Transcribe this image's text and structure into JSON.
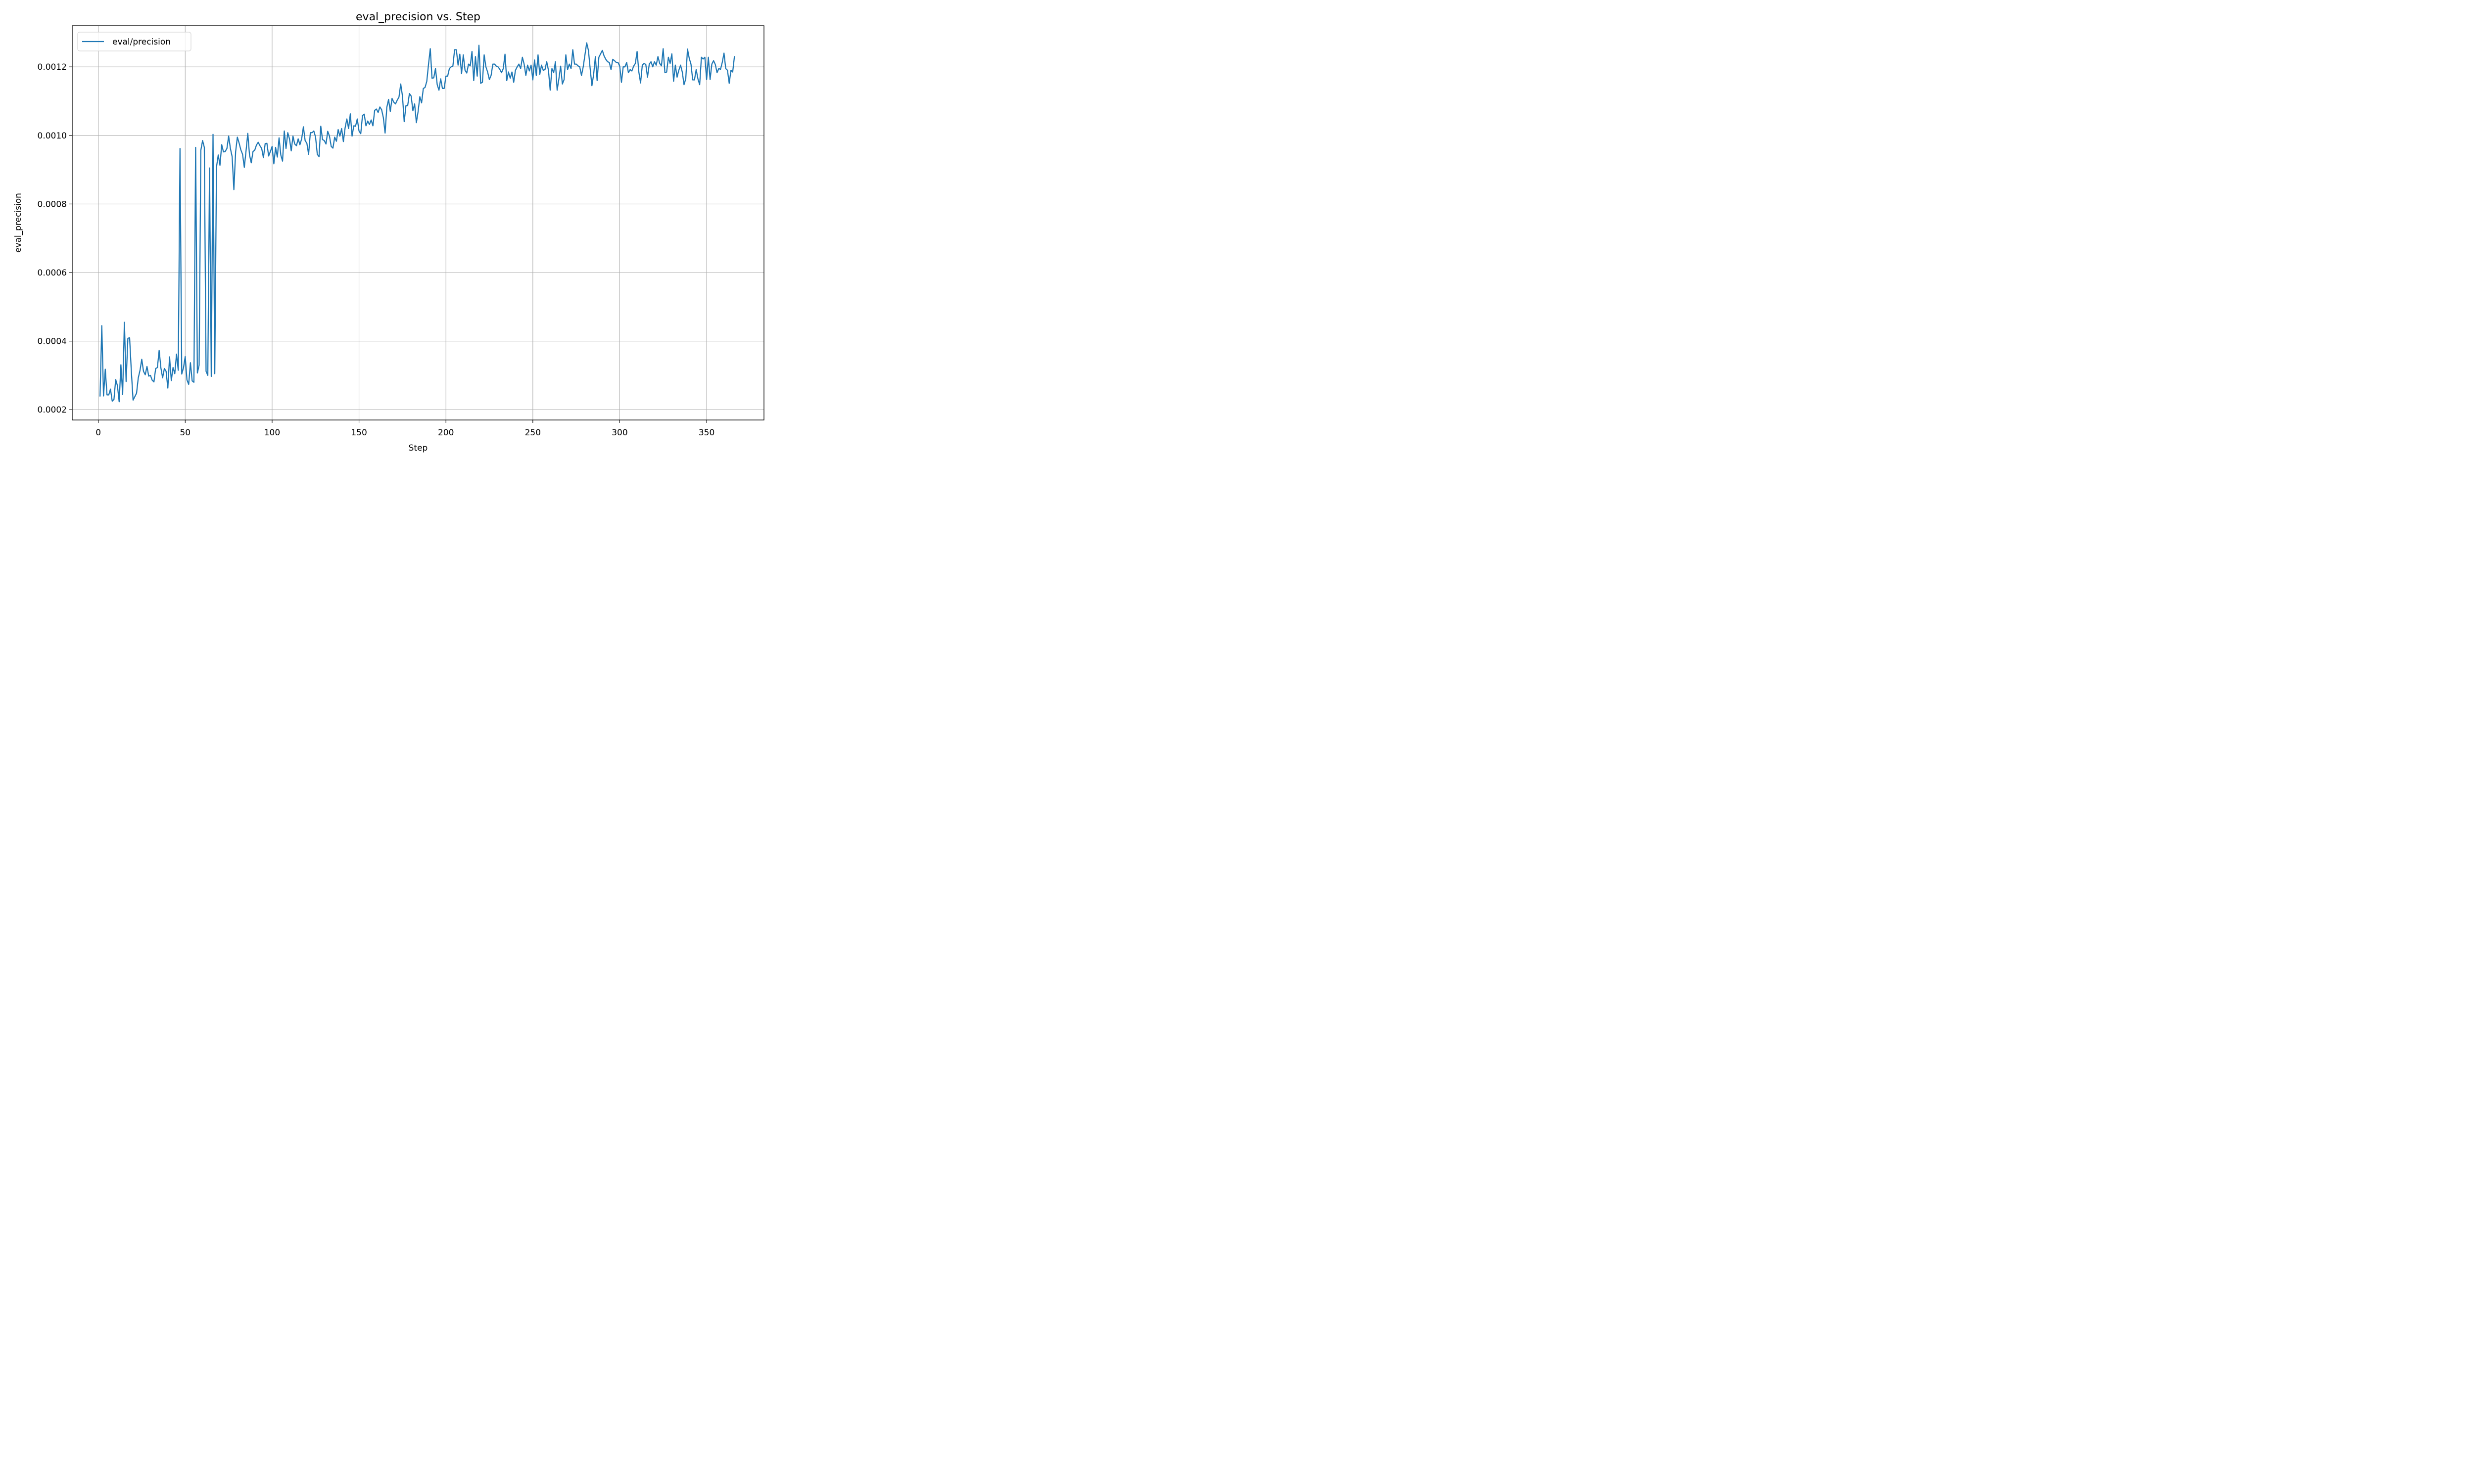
{
  "chart_data": {
    "type": "line",
    "title": "eval_precision vs. Step",
    "xlabel": "Step",
    "ylabel": "eval_precision",
    "xlim": [
      -15,
      383
    ],
    "ylim": [
      0.00017,
      0.00132
    ],
    "xticks": [
      0,
      50,
      100,
      150,
      200,
      250,
      300,
      350
    ],
    "yticks": [
      0.0002,
      0.0004,
      0.0006,
      0.0008,
      0.001,
      0.0012
    ],
    "ytick_labels": [
      "0.0002",
      "0.0004",
      "0.0006",
      "0.0008",
      "0.0010",
      "0.0012"
    ],
    "grid": true,
    "legend": "upper left",
    "series": [
      {
        "name": "eval/precision",
        "color": "#1f77b4",
        "x": [
          1,
          2,
          3,
          4,
          5,
          6,
          7,
          8,
          9,
          10,
          11,
          12,
          13,
          14,
          15,
          16,
          17,
          18,
          19,
          20,
          21,
          22,
          23,
          24,
          25,
          26,
          27,
          28,
          29,
          30,
          31,
          32,
          33,
          34,
          35,
          36,
          37,
          38,
          39,
          40,
          41,
          42,
          43,
          44,
          45,
          46,
          47,
          48,
          49,
          50,
          51,
          52,
          53,
          54,
          55,
          56,
          57,
          58,
          59,
          60,
          61,
          62,
          63,
          64,
          65,
          66,
          67,
          68,
          69,
          70,
          71,
          72,
          73,
          74,
          75,
          76,
          77,
          78,
          79,
          80,
          81,
          82,
          83,
          84,
          85,
          86,
          87,
          88,
          89,
          90,
          91,
          92,
          93,
          94,
          95,
          96,
          97,
          98,
          99,
          100,
          101,
          102,
          103,
          104,
          105,
          106,
          107,
          108,
          109,
          110,
          111,
          112,
          113,
          114,
          115,
          116,
          117,
          118,
          119,
          120,
          121,
          122,
          123,
          124,
          125,
          126,
          127,
          128,
          129,
          130,
          131,
          132,
          133,
          134,
          135,
          136,
          137,
          138,
          139,
          140,
          141,
          142,
          143,
          144,
          145,
          146,
          147,
          148,
          149,
          150,
          151,
          152,
          153,
          154,
          155,
          156,
          157,
          158,
          159,
          160,
          161,
          162,
          163,
          164,
          165,
          166,
          167,
          168,
          169,
          170,
          171,
          172,
          173,
          174,
          175,
          176,
          177,
          178,
          179,
          180,
          181,
          182,
          183,
          184,
          185,
          186,
          187,
          188,
          189,
          190,
          191,
          192,
          193,
          194,
          195,
          196,
          197,
          198,
          199,
          200,
          201,
          202,
          203,
          204,
          205,
          206,
          207,
          208,
          209,
          210,
          211,
          212,
          213,
          214,
          215,
          216,
          217,
          218,
          219,
          220,
          221,
          222,
          223,
          224,
          225,
          226,
          227,
          228,
          229,
          230,
          231,
          232,
          233,
          234,
          235,
          236,
          237,
          238,
          239,
          240,
          241,
          242,
          243,
          244,
          245,
          246,
          247,
          248,
          249,
          250,
          251,
          252,
          253,
          254,
          255,
          256,
          257,
          258,
          259,
          260,
          261,
          262,
          263,
          264,
          265,
          266,
          267,
          268,
          269,
          270,
          271,
          272,
          273,
          274,
          275,
          276,
          277,
          278,
          279,
          280,
          281,
          282,
          283,
          284,
          285,
          286,
          287,
          288,
          289,
          290,
          291,
          292,
          293,
          294,
          295,
          296,
          297,
          298,
          299,
          300,
          301,
          302,
          303,
          304,
          305,
          306,
          307,
          308,
          309,
          310,
          311,
          312,
          313,
          314,
          315,
          316,
          317,
          318,
          319,
          320,
          321,
          322,
          323,
          324,
          325,
          326,
          327,
          328,
          329,
          330,
          331,
          332,
          333,
          334,
          335,
          336,
          337,
          338,
          339,
          340,
          341,
          342,
          343,
          344,
          345,
          346,
          347,
          348,
          349,
          350,
          351,
          352,
          353,
          354,
          355,
          356,
          357,
          358,
          359,
          360,
          361,
          362,
          363,
          364,
          365,
          366
        ],
        "y": [
          0.00024,
          0.000445,
          0.00024,
          0.000318,
          0.000243,
          0.000243,
          0.00026,
          0.000225,
          0.00023,
          0.000288,
          0.00027,
          0.000223,
          0.000331,
          0.000244,
          0.000455,
          0.000282,
          0.000408,
          0.00041,
          0.000312,
          0.000228,
          0.000238,
          0.000248,
          0.000293,
          0.000315,
          0.000347,
          0.000312,
          0.000302,
          0.000326,
          0.000298,
          0.0003,
          0.000286,
          0.000281,
          0.00032,
          0.000323,
          0.000373,
          0.000322,
          0.000293,
          0.00032,
          0.000312,
          0.000263,
          0.000354,
          0.000285,
          0.000323,
          0.000305,
          0.000362,
          0.000315,
          0.000962,
          0.000304,
          0.000322,
          0.000355,
          0.000287,
          0.000274,
          0.000337,
          0.000284,
          0.00028,
          0.000965,
          0.000307,
          0.00033,
          0.000957,
          0.000985,
          0.000965,
          0.000312,
          0.0003,
          0.000905,
          0.000297,
          0.001003,
          0.000305,
          0.000908,
          0.000943,
          0.000913,
          0.000973,
          0.000952,
          0.000953,
          0.000962,
          0.000998,
          0.000962,
          0.000938,
          0.000842,
          0.000952,
          0.000995,
          0.000978,
          0.000958,
          0.000945,
          0.000907,
          0.000955,
          0.001006,
          0.000943,
          0.00092,
          0.000953,
          0.000957,
          0.000972,
          0.00098,
          0.00097,
          0.000962,
          0.000935,
          0.000976,
          0.000977,
          0.00094,
          0.000953,
          0.000968,
          0.000917,
          0.000965,
          0.000937,
          0.000993,
          0.000943,
          0.000925,
          0.001013,
          0.000962,
          0.001008,
          0.00099,
          0.000955,
          0.000998,
          0.000975,
          0.00097,
          0.00099,
          0.000973,
          0.00099,
          0.001025,
          0.000985,
          0.000977,
          0.000945,
          0.001008,
          0.001008,
          0.001013,
          0.000995,
          0.000945,
          0.000938,
          0.001027,
          0.000988,
          0.000985,
          0.000975,
          0.001012,
          0.000998,
          0.000968,
          0.000963,
          0.000995,
          0.000983,
          0.001017,
          0.000998,
          0.00102,
          0.000982,
          0.001022,
          0.001048,
          0.00102,
          0.001063,
          0.000998,
          0.001028,
          0.001027,
          0.001048,
          0.001013,
          0.001005,
          0.001058,
          0.001062,
          0.001028,
          0.001042,
          0.001032,
          0.001045,
          0.001028,
          0.001073,
          0.001077,
          0.001067,
          0.001083,
          0.001075,
          0.001052,
          0.001007,
          0.001082,
          0.001105,
          0.00107,
          0.001108,
          0.001097,
          0.001092,
          0.001103,
          0.001112,
          0.00115,
          0.001115,
          0.00104,
          0.001087,
          0.001087,
          0.001122,
          0.001115,
          0.001072,
          0.001092,
          0.001037,
          0.00107,
          0.001113,
          0.001095,
          0.001137,
          0.00114,
          0.001158,
          0.001208,
          0.001253,
          0.001167,
          0.001168,
          0.001195,
          0.001148,
          0.001132,
          0.001165,
          0.001137,
          0.001137,
          0.001173,
          0.001173,
          0.001195,
          0.0012,
          0.001202,
          0.00125,
          0.00125,
          0.001205,
          0.001237,
          0.00118,
          0.001235,
          0.00119,
          0.001182,
          0.001208,
          0.001203,
          0.001245,
          0.00116,
          0.00123,
          0.001173,
          0.001263,
          0.001152,
          0.001155,
          0.001235,
          0.0012,
          0.001185,
          0.001163,
          0.001175,
          0.001208,
          0.001208,
          0.001202,
          0.0012,
          0.001193,
          0.001183,
          0.001195,
          0.001237,
          0.00116,
          0.001185,
          0.001167,
          0.001185,
          0.001155,
          0.00119,
          0.0012,
          0.001208,
          0.001195,
          0.001228,
          0.001208,
          0.001175,
          0.001205,
          0.001188,
          0.001205,
          0.001162,
          0.00122,
          0.001175,
          0.001235,
          0.001178,
          0.001205,
          0.00119,
          0.001192,
          0.001215,
          0.00119,
          0.001132,
          0.001195,
          0.001183,
          0.001215,
          0.001132,
          0.001165,
          0.001202,
          0.00115,
          0.001163,
          0.001235,
          0.001192,
          0.001208,
          0.001195,
          0.00125,
          0.001208,
          0.001208,
          0.001203,
          0.0012,
          0.001175,
          0.0012,
          0.001235,
          0.00127,
          0.001248,
          0.001195,
          0.001145,
          0.001178,
          0.00123,
          0.00116,
          0.001228,
          0.001238,
          0.001248,
          0.001232,
          0.001222,
          0.001215,
          0.001213,
          0.001192,
          0.001222,
          0.001218,
          0.001213,
          0.001213,
          0.001202,
          0.001155,
          0.0012,
          0.0012,
          0.001213,
          0.001183,
          0.001192,
          0.001188,
          0.001202,
          0.00121,
          0.001245,
          0.001185,
          0.001153,
          0.001205,
          0.00121,
          0.001207,
          0.00117,
          0.001208,
          0.001215,
          0.0012,
          0.001215,
          0.001205,
          0.00123,
          0.00121,
          0.001203,
          0.001253,
          0.001183,
          0.001185,
          0.001228,
          0.00121,
          0.001238,
          0.001158,
          0.001205,
          0.00117,
          0.00119,
          0.001205,
          0.001185,
          0.001148,
          0.001165,
          0.001252,
          0.001225,
          0.001208,
          0.001162,
          0.001162,
          0.001192,
          0.001165,
          0.001148,
          0.001228,
          0.001223,
          0.001228,
          0.001163,
          0.001228,
          0.001163,
          0.001208,
          0.001218,
          0.001207,
          0.001183,
          0.001195,
          0.001193,
          0.001213,
          0.00124,
          0.001195,
          0.00119,
          0.001152,
          0.00119,
          0.001185,
          0.00123
        ]
      }
    ]
  }
}
